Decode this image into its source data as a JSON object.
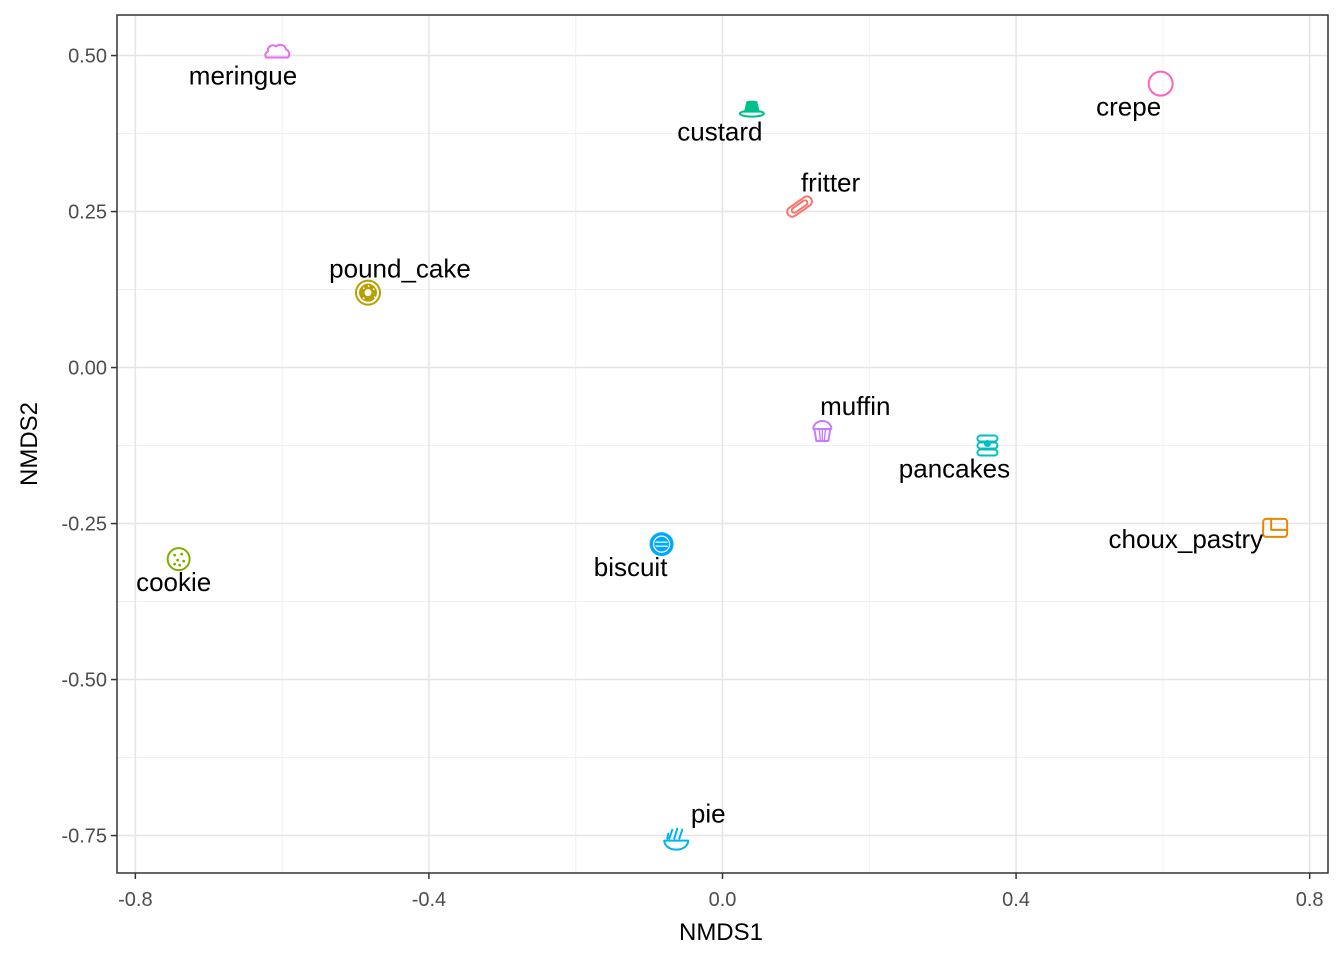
{
  "chart_data": {
    "type": "scatter",
    "title": "",
    "xlabel": "NMDS1",
    "ylabel": "NMDS2",
    "xlim": [
      -0.825,
      0.825
    ],
    "ylim": [
      -0.81,
      0.565
    ],
    "x_ticks": [
      -0.8,
      -0.4,
      0.0,
      0.4,
      0.8
    ],
    "x_tick_labels": [
      "-0.8",
      "-0.4",
      "0.0",
      "0.4",
      "0.8"
    ],
    "y_ticks": [
      0.5,
      0.25,
      0.0,
      -0.25,
      -0.5,
      -0.75
    ],
    "y_tick_labels": [
      "0.50",
      "0.25",
      "0.00",
      "-0.25",
      "-0.50",
      "-0.75"
    ],
    "grid": true,
    "legend": "none",
    "points": [
      {
        "label": "meringue",
        "x": -0.607,
        "y": 0.505,
        "color": "#e76bf3",
        "icon": "cloud-icon",
        "label_pos": "below"
      },
      {
        "label": "custard",
        "x": 0.04,
        "y": 0.415,
        "color": "#00c08b",
        "icon": "custard-icon",
        "label_pos": "below"
      },
      {
        "label": "crepe",
        "x": 0.597,
        "y": 0.455,
        "color": "#ff62bc",
        "icon": "circle-icon",
        "label_pos": "below"
      },
      {
        "label": "fritter",
        "x": 0.105,
        "y": 0.258,
        "color": "#f8766d",
        "icon": "hotdog-icon",
        "label_pos": "above"
      },
      {
        "label": "pound_cake",
        "x": -0.483,
        "y": 0.12,
        "color": "#b79f00",
        "icon": "donut-icon",
        "label_pos": "above"
      },
      {
        "label": "muffin",
        "x": 0.136,
        "y": -0.1,
        "color": "#c77cff",
        "icon": "muffin-icon",
        "label_pos": "above"
      },
      {
        "label": "pancakes",
        "x": 0.361,
        "y": -0.125,
        "color": "#00bfc4",
        "icon": "pancakes-icon",
        "label_pos": "below"
      },
      {
        "label": "choux_pastry",
        "x": 0.753,
        "y": -0.257,
        "color": "#e58700",
        "icon": "bread-icon",
        "label_pos": "left"
      },
      {
        "label": "cookie",
        "x": -0.741,
        "y": -0.307,
        "color": "#7cae00",
        "icon": "cookie-icon",
        "label_pos": "below"
      },
      {
        "label": "biscuit",
        "x": -0.083,
        "y": -0.283,
        "color": "#00a9ff",
        "icon": "biscuit-icon",
        "label_pos": "below"
      },
      {
        "label": "pie",
        "x": -0.063,
        "y": -0.755,
        "color": "#00b4ef",
        "icon": "pie-icon",
        "label_pos": "above-right"
      }
    ]
  }
}
